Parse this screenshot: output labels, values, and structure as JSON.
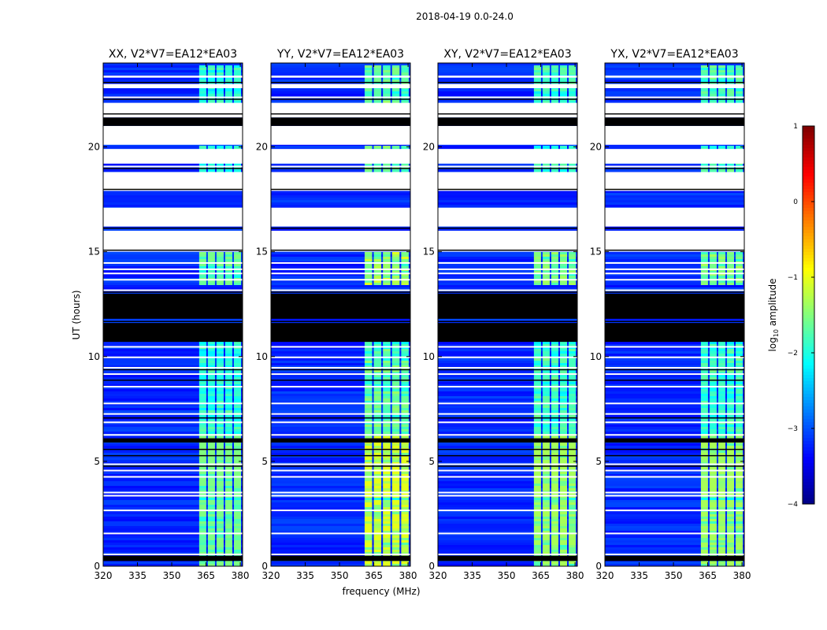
{
  "figure": {
    "suptitle": "2018-04-19 0.0-24.0"
  },
  "chart_data": {
    "type": "heatmap",
    "xlabel": "frequency (MHz)",
    "ylabel": "UT (hours)",
    "xlim": [
      320,
      381
    ],
    "ylim": [
      0,
      24
    ],
    "xticks": [
      320,
      335,
      350,
      365,
      380
    ],
    "yticks": [
      0,
      5,
      10,
      15,
      20
    ],
    "panels": [
      {
        "title": "XX, V2*V7=EA12*EA03",
        "hot_band_mhz": [
          362,
          381
        ],
        "peak_level": -1.8
      },
      {
        "title": "YY, V2*V7=EA12*EA03",
        "hot_band_mhz": [
          361,
          381
        ],
        "peak_level": -1.3
      },
      {
        "title": "XY, V2*V7=EA12*EA03",
        "hot_band_mhz": [
          362,
          381
        ],
        "peak_level": -1.6
      },
      {
        "title": "YX, V2*V7=EA12*EA03",
        "hot_band_mhz": [
          362,
          381
        ],
        "peak_level": -1.6
      }
    ],
    "flagged_black_hours": [
      [
        10.7,
        11.6
      ],
      [
        11.8,
        13.0
      ],
      [
        21.0,
        21.4
      ],
      [
        5.9,
        6.1
      ],
      [
        0.25,
        0.5
      ]
    ],
    "flagged_white_hours": [
      [
        16.2,
        17.1
      ],
      [
        17.9,
        18.8
      ],
      [
        19.2,
        19.9
      ],
      [
        20.1,
        21.0
      ],
      [
        21.4,
        22.1
      ],
      [
        22.8,
        23.0
      ],
      [
        23.3,
        23.4
      ],
      [
        15.0,
        16.0
      ]
    ],
    "colorbar": {
      "label": "log10 amplitude",
      "label_main": "log",
      "label_sub": "10",
      "label_rest": " amplitude",
      "range": [
        -4,
        1
      ],
      "ticks": [
        1,
        0,
        -1,
        -2,
        -3,
        -4
      ],
      "tick_labels": [
        "1",
        "0",
        "−1",
        "−2",
        "−3",
        "−4"
      ],
      "colormap": "jet"
    }
  }
}
